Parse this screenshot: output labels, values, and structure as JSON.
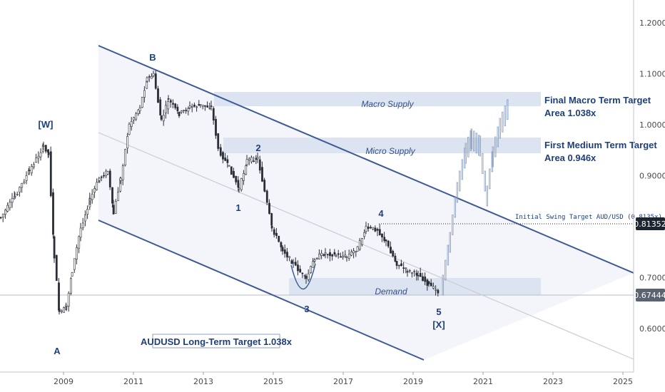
{
  "chart_data": {
    "type": "candlestick",
    "symbol": "AUDUSD",
    "y_axis": {
      "ticks": [
        "1.20000",
        "1.10000",
        "1.00000",
        "0.90000",
        "0.70000",
        "0.60000"
      ],
      "tick_values": [
        1.2,
        1.1,
        1.0,
        0.9,
        0.7,
        0.6
      ]
    },
    "x_axis": {
      "ticks": [
        "2009",
        "2011",
        "2013",
        "2015",
        "2017",
        "2019",
        "2021",
        "2023",
        "2025"
      ]
    },
    "price_badges": [
      {
        "label": "0.81352",
        "value": 0.81352,
        "color": "#1c2530"
      },
      {
        "label": "0.67444",
        "value": 0.67444,
        "color": "#5a6470"
      }
    ],
    "zones": [
      {
        "label": "Macro Supply",
        "color": "#dce4f1"
      },
      {
        "label": "Micro Supply",
        "color": "#dce4f1"
      },
      {
        "label": "Demand",
        "color": "#dce4f1"
      }
    ],
    "targets": [
      {
        "line1": "Final Macro Term Target",
        "line2": "Area 1.038x"
      },
      {
        "line1": "First Medium Term Target",
        "line2": "Area 0.946x"
      }
    ],
    "swing_target_label": "Initial Swing Target AUD/USD (0.8135x)",
    "bottom_label": "AUDUSD Long-Term Target 1.038x",
    "waves": [
      {
        "label": "[W]"
      },
      {
        "label": "A"
      },
      {
        "label": "B"
      },
      {
        "label": "1"
      },
      {
        "label": "2"
      },
      {
        "label": "3"
      },
      {
        "label": "4"
      },
      {
        "label": "5"
      },
      {
        "label": "[X]"
      }
    ],
    "colors": {
      "channel": "#3d5a93",
      "candle": "#2a2e36",
      "projection": "#8aa0c4",
      "midline": "#c8ccd4"
    }
  }
}
